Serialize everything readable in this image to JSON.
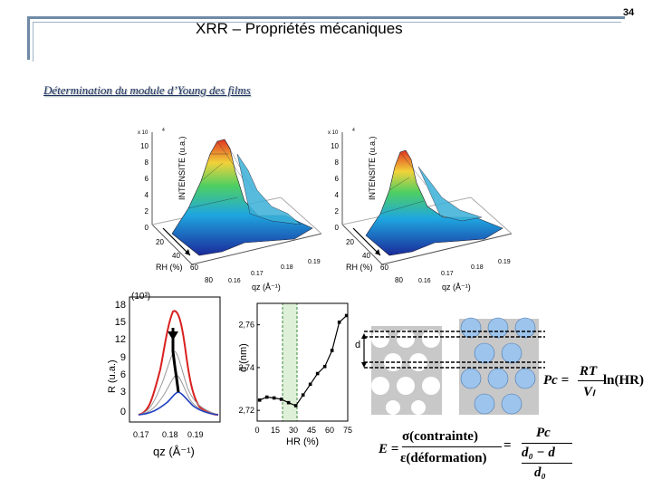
{
  "header": {
    "title": "XRR – Propriétés mécaniques",
    "page_number": "34",
    "subtitle": "Détermination du module d’Young des films"
  },
  "plots3d": [
    {
      "zlabel": "INTENSITE (u.a.)",
      "zscale": "x 10",
      "zexp": "4",
      "zticks": [
        "10",
        "8",
        "6",
        "4",
        "2",
        "0"
      ],
      "rh_label": "RH (%)",
      "rh_ticks": [
        "20",
        "40",
        "60",
        "80"
      ],
      "qz_ticks": [
        "0.16",
        "0.17",
        "0.18",
        "0.19"
      ],
      "qz_label": "qz (Å⁻¹)"
    },
    {
      "zlabel": "INTENSITE (u.a.)",
      "zscale": "x 10",
      "zexp": "4",
      "zticks": [
        "10",
        "8",
        "6",
        "4",
        "2",
        "0"
      ],
      "rh_label": "RH (%)",
      "rh_ticks": [
        "20",
        "40",
        "60",
        "80"
      ],
      "qz_ticks": [
        "0.16",
        "0.17",
        "0.18",
        "0.19"
      ],
      "qz_label": "qz (Å⁻¹)"
    }
  ],
  "reflect_plot": {
    "scale": "(10³)",
    "yticks": [
      "18",
      "15",
      "12",
      "9",
      "6",
      "3",
      "0"
    ],
    "xticks": [
      "0.17",
      "0.18",
      "0.19"
    ],
    "xlabel": "qz (Å⁻¹)",
    "ylabel": "R (u.a.)"
  },
  "chart_data": {
    "type": "scatter",
    "title": "",
    "xlabel": "HR (%)",
    "ylabel": "d (nm)",
    "xlim": [
      0,
      75
    ],
    "ylim": [
      2.715,
      2.77
    ],
    "xticks": [
      "0",
      "15",
      "30",
      "45",
      "60",
      "75"
    ],
    "yticks": [
      "2,72",
      "2,74",
      "2,76"
    ],
    "highlight_band": [
      21,
      33
    ],
    "x": [
      2,
      8,
      14,
      20,
      26,
      32,
      38,
      44,
      50,
      56,
      62,
      68,
      74
    ],
    "y": [
      2.7248,
      2.7262,
      2.7258,
      2.7252,
      2.7236,
      2.7222,
      2.7272,
      2.7322,
      2.7372,
      2.7405,
      2.748,
      2.7612,
      2.7643
    ]
  },
  "schematic": {
    "d_label": "d"
  },
  "formulas": {
    "pc_lhs": "Pc =",
    "pc_num": "RT",
    "pc_den": "Vₗ",
    "pc_fn": "ln(HR)",
    "e_lhs": "E =",
    "e_num": "σ(contrainte)",
    "e_den": "ε(déformation)",
    "e_eq": "=",
    "e_num2": "Pc",
    "e_den2": "d₀ − d",
    "e_den3": "d₀"
  }
}
